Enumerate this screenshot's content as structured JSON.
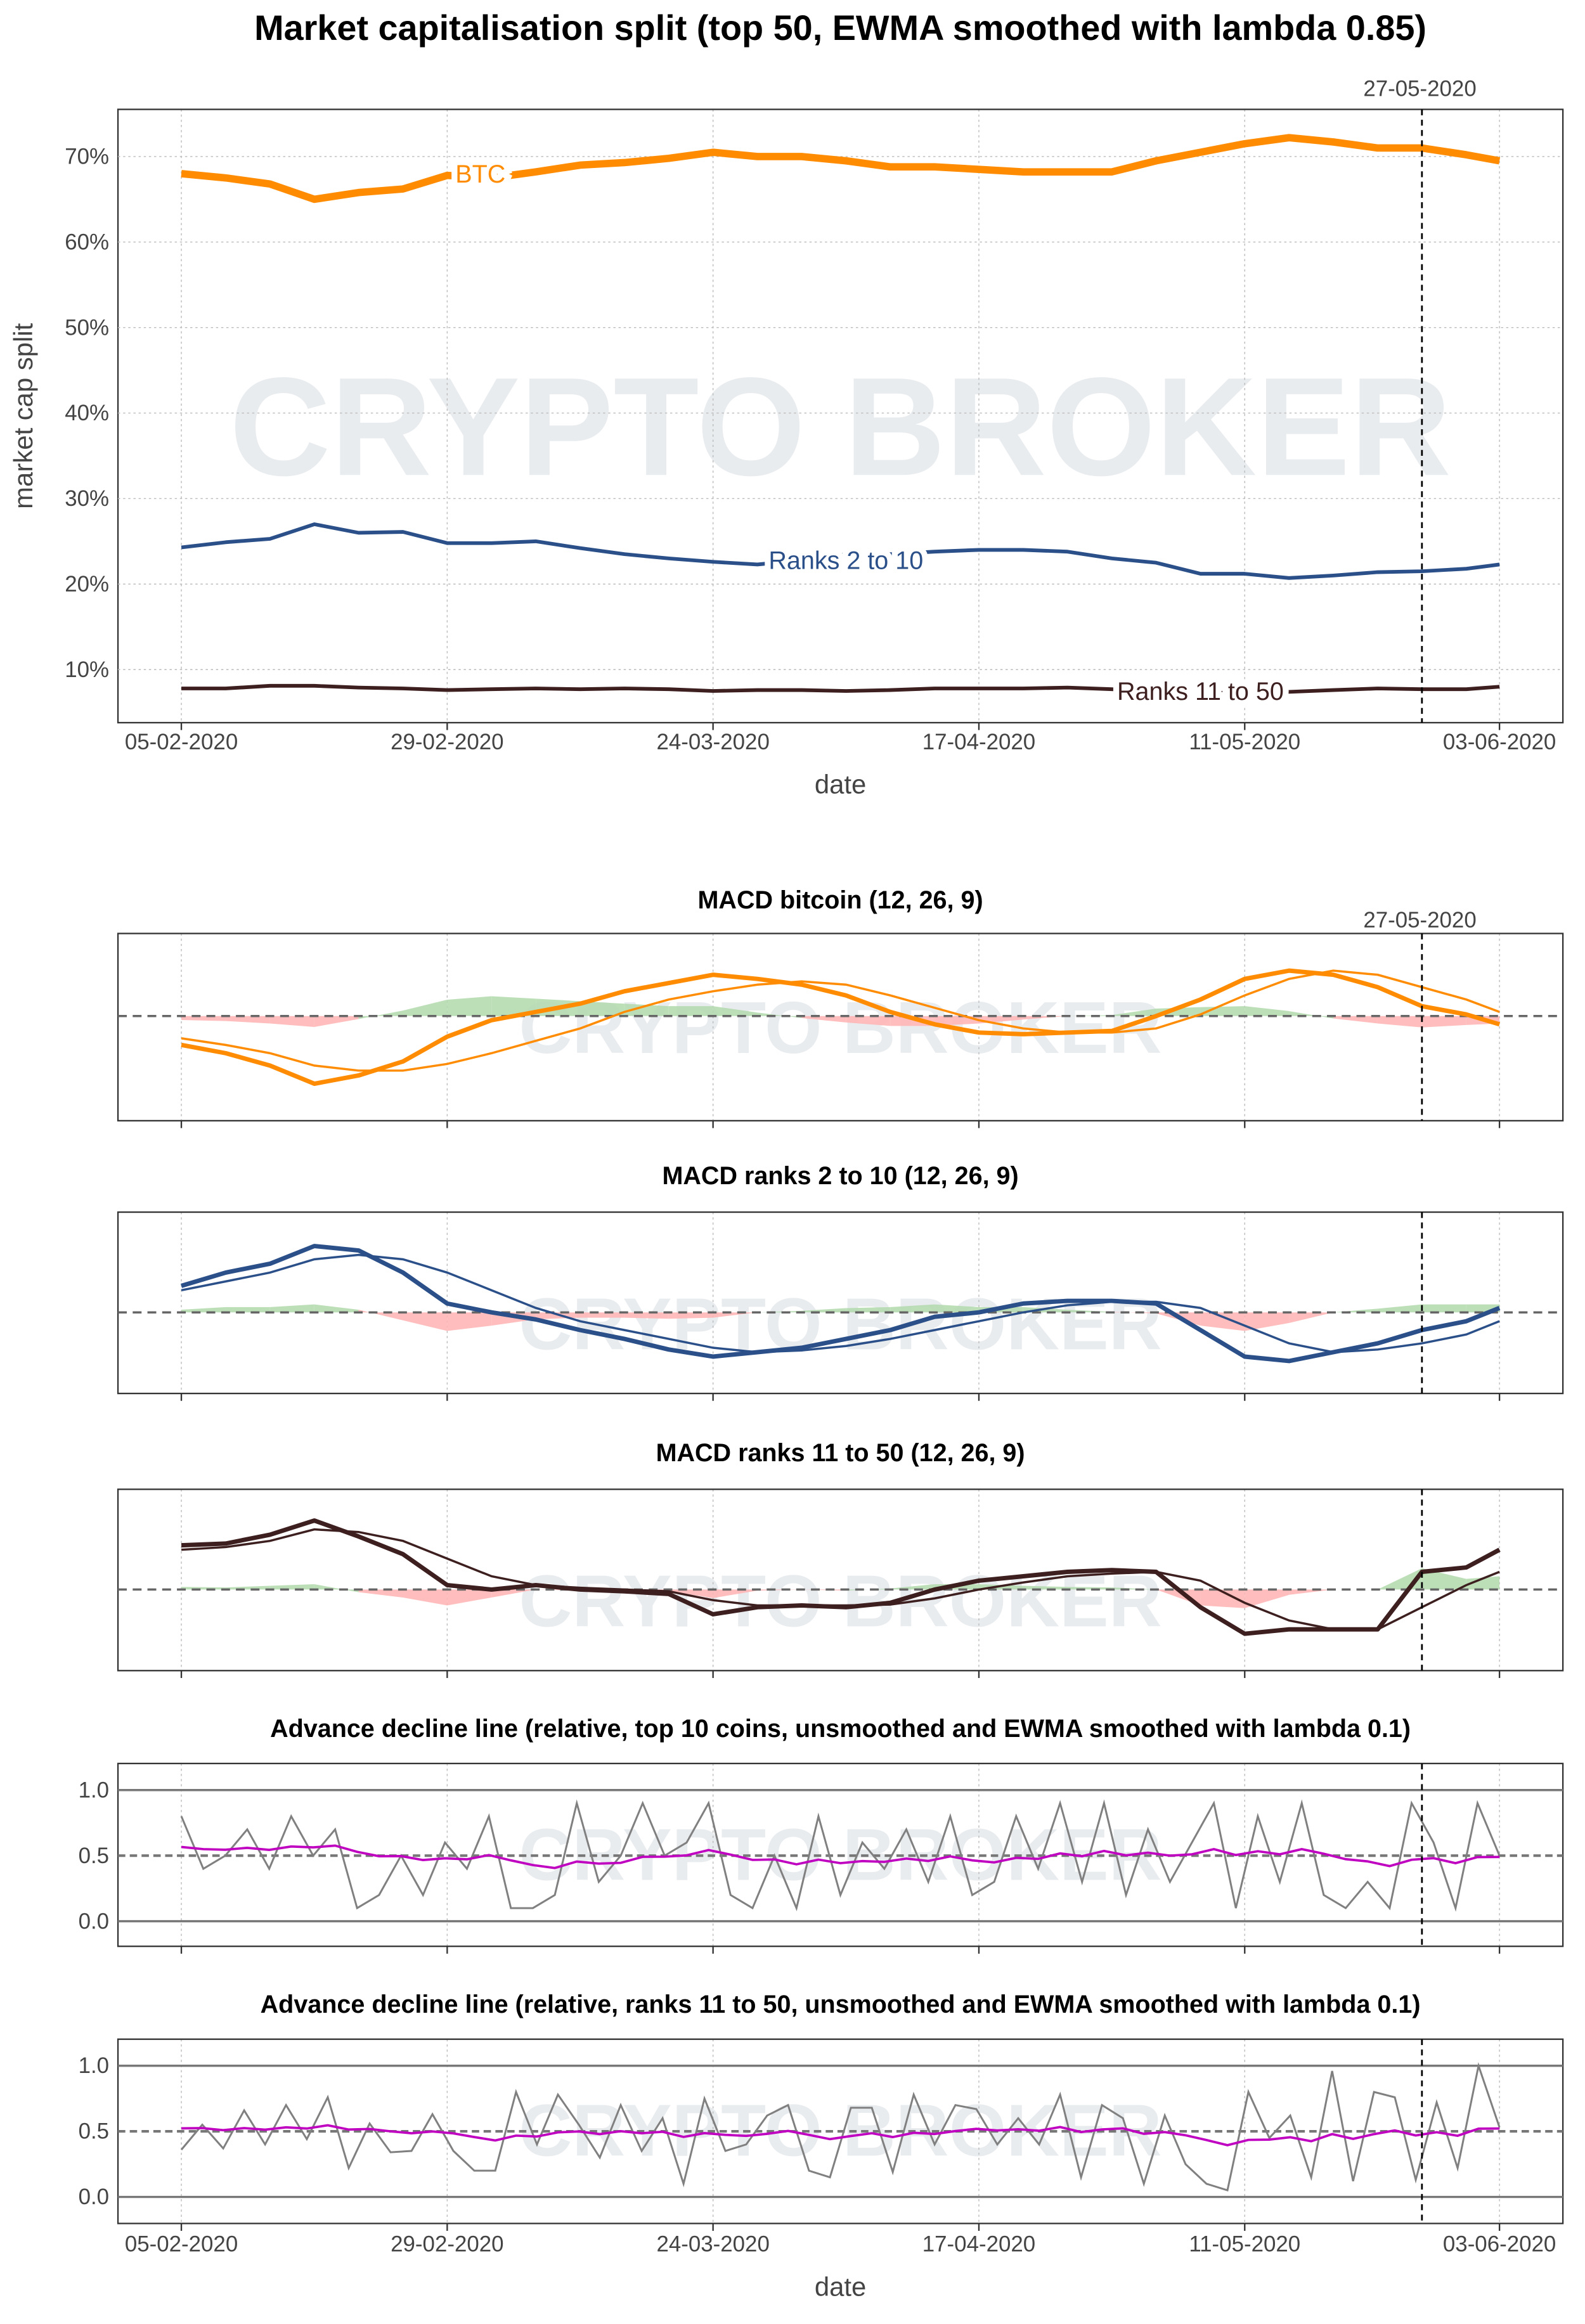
{
  "chart_data": [
    {
      "type": "line",
      "title": "Market capitalisation split (top 50, EWMA smoothed with lambda 0.85)",
      "xlabel": "date",
      "ylabel": "market cap split",
      "watermark": "CRYPTO BROKER",
      "marker_label": "27-05-2020",
      "x_ticks": [
        "05-02-2020",
        "29-02-2020",
        "24-03-2020",
        "17-04-2020",
        "11-05-2020",
        "03-06-2020"
      ],
      "y_ticks": [
        "10%",
        "20%",
        "30%",
        "40%",
        "50%",
        "60%",
        "70%"
      ],
      "ylim": [
        4,
        75.5
      ],
      "days": [
        0,
        4,
        8,
        12,
        16,
        20,
        24,
        28,
        32,
        36,
        40,
        44,
        48,
        52,
        56,
        60,
        64,
        68,
        72,
        76,
        80,
        84,
        88,
        92,
        96,
        100,
        104,
        108,
        112,
        116,
        119
      ],
      "series": [
        {
          "name": "BTC",
          "color": "#ff8c00",
          "values": [
            68,
            67.5,
            66.8,
            65,
            65.8,
            66.2,
            67.8,
            67.5,
            68.2,
            69,
            69.3,
            69.8,
            70.5,
            70,
            70,
            69.5,
            68.8,
            68.8,
            68.5,
            68.2,
            68.2,
            68.2,
            69.5,
            70.5,
            71.5,
            72.2,
            71.7,
            71,
            71,
            70.2,
            69.5
          ]
        },
        {
          "name": "Ranks 2 to 10",
          "color": "#2b5089",
          "values": [
            24.3,
            24.9,
            25.3,
            27,
            26,
            26.1,
            24.8,
            24.8,
            25,
            24.2,
            23.5,
            23,
            22.6,
            22.3,
            22.8,
            23.5,
            23.5,
            23.8,
            24,
            24,
            23.8,
            23,
            22.5,
            21.2,
            21.2,
            20.7,
            21,
            21.4,
            21.5,
            21.8,
            22.3
          ]
        },
        {
          "name": "Ranks 11 to 50",
          "color": "#3d1f1f",
          "values": [
            7.8,
            7.8,
            8.1,
            8.1,
            7.9,
            7.8,
            7.6,
            7.7,
            7.8,
            7.7,
            7.8,
            7.7,
            7.5,
            7.6,
            7.6,
            7.5,
            7.6,
            7.8,
            7.8,
            7.8,
            7.9,
            7.7,
            7.4,
            7.3,
            7.3,
            7.4,
            7.6,
            7.8,
            7.7,
            7.7,
            8.0
          ]
        }
      ]
    },
    {
      "type": "line",
      "title": "MACD bitcoin (12, 26, 9)",
      "marker_label": "27-05-2020",
      "color": "#ff8c00",
      "days": [
        0,
        4,
        8,
        12,
        16,
        20,
        24,
        28,
        32,
        36,
        40,
        44,
        48,
        52,
        56,
        60,
        64,
        68,
        72,
        76,
        80,
        84,
        88,
        92,
        96,
        100,
        104,
        108,
        112,
        116,
        119
      ],
      "macd": [
        -0.35,
        -0.45,
        -0.6,
        -0.82,
        -0.72,
        -0.55,
        -0.25,
        -0.05,
        0.05,
        0.15,
        0.3,
        0.4,
        0.5,
        0.45,
        0.38,
        0.25,
        0.05,
        -0.1,
        -0.2,
        -0.22,
        -0.2,
        -0.18,
        0.0,
        0.2,
        0.45,
        0.55,
        0.5,
        0.35,
        0.12,
        0.02,
        -0.1
      ],
      "signal": [
        -0.27,
        -0.35,
        -0.45,
        -0.6,
        -0.66,
        -0.66,
        -0.58,
        -0.45,
        -0.3,
        -0.15,
        0.05,
        0.2,
        0.3,
        0.38,
        0.42,
        0.38,
        0.25,
        0.1,
        -0.05,
        -0.15,
        -0.2,
        -0.2,
        -0.15,
        0.02,
        0.25,
        0.45,
        0.55,
        0.5,
        0.35,
        0.2,
        0.05
      ]
    },
    {
      "type": "line",
      "title": "MACD ranks 2 to 10 (12, 26, 9)",
      "color": "#2b5089",
      "days": [
        0,
        4,
        8,
        12,
        16,
        20,
        24,
        28,
        32,
        36,
        40,
        44,
        48,
        52,
        56,
        60,
        64,
        68,
        72,
        76,
        80,
        84,
        88,
        92,
        96,
        100,
        104,
        108,
        112,
        116,
        119
      ],
      "macd": [
        0.3,
        0.45,
        0.55,
        0.75,
        0.7,
        0.45,
        0.1,
        0.0,
        -0.08,
        -0.2,
        -0.3,
        -0.42,
        -0.5,
        -0.45,
        -0.4,
        -0.3,
        -0.2,
        -0.05,
        0.0,
        0.1,
        0.13,
        0.13,
        0.1,
        -0.2,
        -0.5,
        -0.55,
        -0.45,
        -0.35,
        -0.2,
        -0.1,
        0.05
      ],
      "signal": [
        0.25,
        0.35,
        0.45,
        0.6,
        0.65,
        0.6,
        0.45,
        0.25,
        0.05,
        -0.1,
        -0.2,
        -0.3,
        -0.4,
        -0.45,
        -0.43,
        -0.38,
        -0.3,
        -0.2,
        -0.1,
        0.0,
        0.08,
        0.12,
        0.12,
        0.05,
        -0.15,
        -0.35,
        -0.45,
        -0.42,
        -0.35,
        -0.25,
        -0.1
      ]
    },
    {
      "type": "line",
      "title": "MACD ranks 11 to 50 (12, 26, 9)",
      "color": "#3d1f1f",
      "days": [
        0,
        4,
        8,
        12,
        16,
        20,
        24,
        28,
        32,
        36,
        40,
        44,
        48,
        52,
        56,
        60,
        64,
        68,
        72,
        76,
        80,
        84,
        88,
        92,
        96,
        100,
        104,
        108,
        112,
        116,
        119
      ],
      "macd": [
        0.5,
        0.52,
        0.62,
        0.78,
        0.6,
        0.4,
        0.05,
        0.0,
        0.05,
        0.0,
        -0.02,
        -0.05,
        -0.28,
        -0.2,
        -0.18,
        -0.2,
        -0.15,
        0.0,
        0.1,
        0.15,
        0.2,
        0.22,
        0.2,
        -0.2,
        -0.5,
        -0.45,
        -0.45,
        -0.45,
        0.2,
        0.25,
        0.45
      ],
      "signal": [
        0.45,
        0.48,
        0.55,
        0.68,
        0.65,
        0.55,
        0.35,
        0.15,
        0.05,
        0.02,
        0.0,
        -0.02,
        -0.12,
        -0.18,
        -0.18,
        -0.18,
        -0.17,
        -0.1,
        0.0,
        0.08,
        0.15,
        0.18,
        0.2,
        0.1,
        -0.15,
        -0.35,
        -0.45,
        -0.45,
        -0.2,
        0.05,
        0.2
      ]
    },
    {
      "type": "line",
      "title": "Advance decline line (relative, top 10 coins, unsmoothed and EWMA smoothed with lambda 0.1)",
      "lambda": 0.1,
      "y_ticks": [
        "0.0",
        "0.5",
        "1.0"
      ],
      "ylim": [
        -0.2,
        1.2
      ],
      "raw": [
        0.8,
        0.4,
        0.5,
        0.7,
        0.4,
        0.8,
        0.5,
        0.7,
        0.1,
        0.2,
        0.5,
        0.2,
        0.6,
        0.4,
        0.8,
        0.1,
        0.1,
        0.2,
        0.9,
        0.3,
        0.5,
        0.9,
        0.5,
        0.6,
        0.9,
        0.2,
        0.1,
        0.5,
        0.1,
        0.8,
        0.2,
        0.6,
        0.4,
        0.7,
        0.3,
        0.8,
        0.2,
        0.3,
        0.8,
        0.4,
        0.9,
        0.3,
        0.9,
        0.2,
        0.7,
        0.3,
        0.6,
        0.9,
        0.1,
        0.8,
        0.3,
        0.9,
        0.2,
        0.1,
        0.3,
        0.1,
        0.9,
        0.6,
        0.1,
        0.9,
        0.5
      ]
    },
    {
      "type": "line",
      "title": "Advance decline line (relative, ranks 11 to 50, unsmoothed and EWMA smoothed with lambda 0.1)",
      "lambda": 0.1,
      "xlabel": "date",
      "y_ticks": [
        "0.0",
        "0.5",
        "1.0"
      ],
      "ylim": [
        -0.2,
        1.2
      ],
      "raw": [
        0.36,
        0.55,
        0.37,
        0.66,
        0.4,
        0.7,
        0.44,
        0.76,
        0.22,
        0.56,
        0.34,
        0.35,
        0.63,
        0.35,
        0.2,
        0.2,
        0.8,
        0.4,
        0.78,
        0.55,
        0.3,
        0.7,
        0.35,
        0.6,
        0.1,
        0.75,
        0.35,
        0.4,
        0.62,
        0.7,
        0.2,
        0.15,
        0.68,
        0.68,
        0.19,
        0.78,
        0.4,
        0.7,
        0.67,
        0.4,
        0.6,
        0.4,
        0.78,
        0.15,
        0.7,
        0.6,
        0.1,
        0.62,
        0.25,
        0.1,
        0.05,
        0.8,
        0.45,
        0.62,
        0.15,
        0.96,
        0.12,
        0.8,
        0.76,
        0.13,
        0.72,
        0.22,
        1.0,
        0.53
      ]
    }
  ]
}
